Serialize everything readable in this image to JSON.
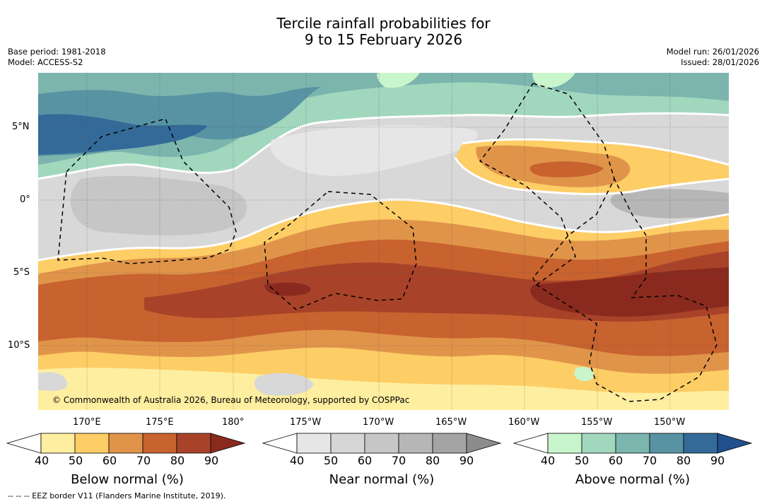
{
  "header": {
    "title_line1": "Tercile rainfall probabilities for",
    "title_line2": "9 to 15 February 2026",
    "base_period": "Base period: 1981-2018",
    "model": "Model: ACCESS-S2",
    "model_run": "Model run: 26/01/2026",
    "issued": "Issued: 28/01/2026"
  },
  "map": {
    "lat_ticks": [
      "5°N",
      "0°",
      "5°S",
      "10°S"
    ],
    "lon_ticks": [
      "170°E",
      "175°E",
      "180°",
      "175°W",
      "170°W",
      "165°W",
      "160°W",
      "155°W",
      "150°W"
    ],
    "copyright": "© Commonwealth of Australia 2026, Bureau of Meteorology, supported by COSPPac",
    "colors": {
      "ocean_grey": "#d8d8d8",
      "boundary_white": "#ffffff",
      "eez_border": "#000000"
    }
  },
  "colorbars": [
    {
      "label": "Below normal (%)",
      "ticks": [
        "40",
        "50",
        "60",
        "70",
        "80",
        "90"
      ],
      "colors": [
        "#ffffff",
        "#feeea0",
        "#fdcd66",
        "#e0944a",
        "#c8622f",
        "#a8432a",
        "#8a2a1e"
      ]
    },
    {
      "label": "Near normal (%)",
      "ticks": [
        "40",
        "50",
        "60",
        "70",
        "80",
        "90"
      ],
      "colors": [
        "#ffffff",
        "#e6e6e6",
        "#d6d6d6",
        "#c6c6c6",
        "#b6b6b6",
        "#a4a4a4",
        "#8c8c8c"
      ]
    },
    {
      "label": "Above normal (%)",
      "ticks": [
        "40",
        "50",
        "60",
        "70",
        "80",
        "90"
      ],
      "colors": [
        "#ffffff",
        "#c8f5cc",
        "#a1d7bd",
        "#7cb5ae",
        "#5893a3",
        "#336a98",
        "#214f8c"
      ]
    }
  ],
  "footer": {
    "legend_line": "--  --  -- EEZ border V11 (Flanders Marine Institute, 2019)."
  }
}
